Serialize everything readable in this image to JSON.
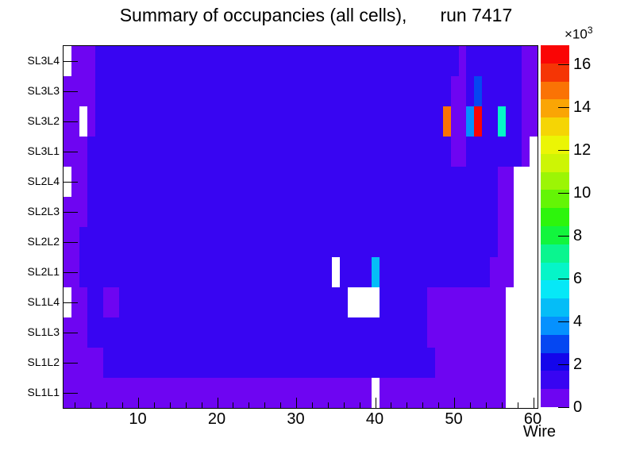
{
  "title": {
    "text": "Summary of occupancies (all cells),",
    "run_text": "run 7417"
  },
  "x_axis": {
    "label": "Wire",
    "major_ticks": [
      10,
      20,
      30,
      40,
      50,
      60
    ],
    "minor_tick_step": 2,
    "range": [
      0.5,
      60.5
    ]
  },
  "y_axis": {
    "labels_top_to_bottom": [
      "SL3L4",
      "SL3L3",
      "SL3L2",
      "SL3L1",
      "SL2L4",
      "SL2L3",
      "SL2L2",
      "SL2L1",
      "SL1L4",
      "SL1L3",
      "SL1L2",
      "SL1L1"
    ]
  },
  "colorbar": {
    "multiplier_label": "×10",
    "multiplier_exp": "3",
    "tick_values": [
      0,
      2,
      4,
      6,
      8,
      10,
      12,
      14,
      16
    ],
    "tick_scale": 1000,
    "z_min": 0,
    "z_max": 16900,
    "palette": [
      "#6e05f2",
      "#3805f2",
      "#1405eb",
      "#0547f2",
      "#0591fe",
      "#05bdf7",
      "#06e8f7",
      "#05f5c8",
      "#0af58f",
      "#12f53d",
      "#2df50c",
      "#64f505",
      "#9cf505",
      "#cdf505",
      "#ebf505",
      "#f5d505",
      "#faa505",
      "#fa7305",
      "#f53505",
      "#fa0505"
    ]
  },
  "chart_data": {
    "type": "heatmap",
    "title": "Summary of occupancies (all cells), run 7417",
    "xlabel": "Wire",
    "x_range": [
      1,
      60
    ],
    "rows_top_to_bottom": [
      "SL3L4",
      "SL3L3",
      "SL3L2",
      "SL3L1",
      "SL2L4",
      "SL2L3",
      "SL2L2",
      "SL2L1",
      "SL1L4",
      "SL1L3",
      "SL1L2",
      "SL1L1"
    ],
    "background_occupancy": 1200,
    "low_occupancy_value": 500,
    "low_occupancy_regions": [
      {
        "wires": [
          2,
          4
        ],
        "rows": [
          "SL3L4",
          "SL3L4"
        ]
      },
      {
        "wires": [
          1,
          4
        ],
        "rows": [
          "SL3L3",
          "SL3L3"
        ]
      },
      {
        "wires": [
          1,
          2
        ],
        "rows": [
          "SL3L2",
          "SL3L2"
        ]
      },
      {
        "wires": [
          4,
          4
        ],
        "rows": [
          "SL3L2",
          "SL3L2"
        ]
      },
      {
        "wires": [
          1,
          3
        ],
        "rows": [
          "SL3L1",
          "SL3L1"
        ]
      },
      {
        "wires": [
          2,
          3
        ],
        "rows": [
          "SL2L4",
          "SL2L4"
        ]
      },
      {
        "wires": [
          1,
          3
        ],
        "rows": [
          "SL2L3",
          "SL2L3"
        ]
      },
      {
        "wires": [
          1,
          2
        ],
        "rows": [
          "SL2L2",
          "SL2L2"
        ]
      },
      {
        "wires": [
          1,
          2
        ],
        "rows": [
          "SL2L1",
          "SL2L1"
        ]
      },
      {
        "wires": [
          2,
          3
        ],
        "rows": [
          "SL1L4",
          "SL1L4"
        ]
      },
      {
        "wires": [
          1,
          3
        ],
        "rows": [
          "SL1L3",
          "SL1L3"
        ]
      },
      {
        "wires": [
          1,
          5
        ],
        "rows": [
          "SL1L2",
          "SL1L2"
        ]
      },
      {
        "wires": [
          1,
          56
        ],
        "rows": [
          "SL1L1",
          "SL1L1"
        ]
      },
      {
        "wires": [
          51,
          51
        ],
        "rows": [
          "SL3L4",
          "SL3L4"
        ]
      },
      {
        "wires": [
          50,
          51
        ],
        "rows": [
          "SL3L3",
          "SL3L1"
        ]
      },
      {
        "wires": [
          59,
          60
        ],
        "rows": [
          "SL3L4",
          "SL3L2"
        ]
      },
      {
        "wires": [
          59,
          59
        ],
        "rows": [
          "SL3L1",
          "SL3L1"
        ]
      },
      {
        "wires": [
          56,
          57
        ],
        "rows": [
          "SL2L4",
          "SL2L1"
        ]
      },
      {
        "wires": [
          55,
          57
        ],
        "rows": [
          "SL2L1",
          "SL2L1"
        ]
      },
      {
        "wires": [
          6,
          7
        ],
        "rows": [
          "SL1L4",
          "SL1L4"
        ]
      },
      {
        "wires": [
          47,
          56
        ],
        "rows": [
          "SL1L4",
          "SL1L3"
        ]
      },
      {
        "wires": [
          48,
          56
        ],
        "rows": [
          "SL1L2",
          "SL1L2"
        ]
      }
    ],
    "zero_occupancy_regions": [
      {
        "wires": [
          1,
          1
        ],
        "rows": [
          "SL3L4",
          "SL3L4"
        ]
      },
      {
        "wires": [
          3,
          3
        ],
        "rows": [
          "SL3L2",
          "SL3L2"
        ]
      },
      {
        "wires": [
          1,
          1
        ],
        "rows": [
          "SL2L4",
          "SL2L4"
        ]
      },
      {
        "wires": [
          1,
          1
        ],
        "rows": [
          "SL1L4",
          "SL1L4"
        ]
      },
      {
        "wires": [
          35,
          35
        ],
        "rows": [
          "SL2L1",
          "SL2L1"
        ]
      },
      {
        "wires": [
          37,
          40
        ],
        "rows": [
          "SL1L4",
          "SL1L4"
        ]
      },
      {
        "wires": [
          40,
          40
        ],
        "rows": [
          "SL1L1",
          "SL1L1"
        ]
      },
      {
        "wires": [
          60,
          60
        ],
        "rows": [
          "SL3L1",
          "SL3L1"
        ]
      },
      {
        "wires": [
          58,
          60
        ],
        "rows": [
          "SL2L4",
          "SL2L1"
        ]
      },
      {
        "wires": [
          57,
          60
        ],
        "rows": [
          "SL1L4",
          "SL1L1"
        ]
      }
    ],
    "hot_cells": [
      {
        "wire": 49,
        "row": "SL3L2",
        "band": 17,
        "value": 14800
      },
      {
        "wire": 52,
        "row": "SL3L2",
        "band": 4,
        "value": 3800
      },
      {
        "wire": 53,
        "row": "SL3L2",
        "band": 19,
        "value": 16500
      },
      {
        "wire": 56,
        "row": "SL3L2",
        "band": 7,
        "value": 6300
      },
      {
        "wire": 53,
        "row": "SL3L3",
        "band": 3,
        "value": 3000
      },
      {
        "wire": 40,
        "row": "SL2L1",
        "band": 5,
        "value": 4600
      }
    ]
  }
}
